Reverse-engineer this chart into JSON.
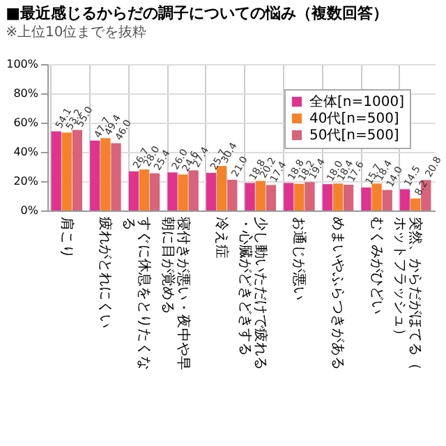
{
  "chart_data": {
    "type": "bar",
    "title": "■最近感じるからだの調子についての悩み（複数回答）",
    "subtitle": "※上位10位までを抜粋",
    "categories": [
      "肩こり",
      "疲れがとれにくい",
      "すぐに休息をとりたくなる",
      "寝付きが悪い・夜中や早朝に目が覚める",
      "冷え症",
      "少し動いただけで疲れる・心臓がどきどきする",
      "お通じが悪い",
      "めまいやふらつきがある",
      "むくみがひどい",
      "突然、からだがほてる（ホットフラッシュ）"
    ],
    "series": [
      {
        "name": "全体[n=1000]",
        "color": "#e0338f",
        "values": [
          54.1,
          47.7,
          26.7,
          26.0,
          25.7,
          18.8,
          18.8,
          18.0,
          15.7,
          14.5
        ]
      },
      {
        "name": "40代[n=500]",
        "color": "#f5822a",
        "values": [
          53.2,
          49.4,
          28.0,
          24.6,
          30.4,
          20.2,
          18.2,
          18.4,
          18.4,
          8.2
        ]
      },
      {
        "name": "50代[n=500]",
        "color": "#d9637a",
        "values": [
          55.0,
          46.0,
          25.4,
          27.4,
          21.0,
          17.4,
          19.4,
          17.6,
          14.0,
          20.8
        ]
      }
    ],
    "ylim": [
      0,
      100
    ],
    "yticks": [
      {
        "value": 0,
        "label": "0%"
      },
      {
        "value": 20,
        "label": "20%"
      },
      {
        "value": 40,
        "label": "40%"
      },
      {
        "value": 60,
        "label": "60%"
      },
      {
        "value": 80,
        "label": "80%"
      },
      {
        "value": 100,
        "label": "100%"
      }
    ],
    "grid": true,
    "legend": "top right",
    "value_labels": [
      [
        "54.1",
        "47.7",
        "26.7",
        "26.0",
        "25.7",
        "18.8",
        "18.8",
        "18.0",
        "15.7",
        "14.5"
      ],
      [
        "53.2",
        "49.4",
        "28.0",
        "24.6",
        "30.4",
        "20.2",
        "18.2",
        "18.4",
        "18.4",
        "8.2"
      ],
      [
        "55.0",
        "46.0",
        "25.4",
        "27.4",
        "21.0",
        "17.4",
        "19.4",
        "17.6",
        "14.0",
        "20.8"
      ]
    ]
  }
}
